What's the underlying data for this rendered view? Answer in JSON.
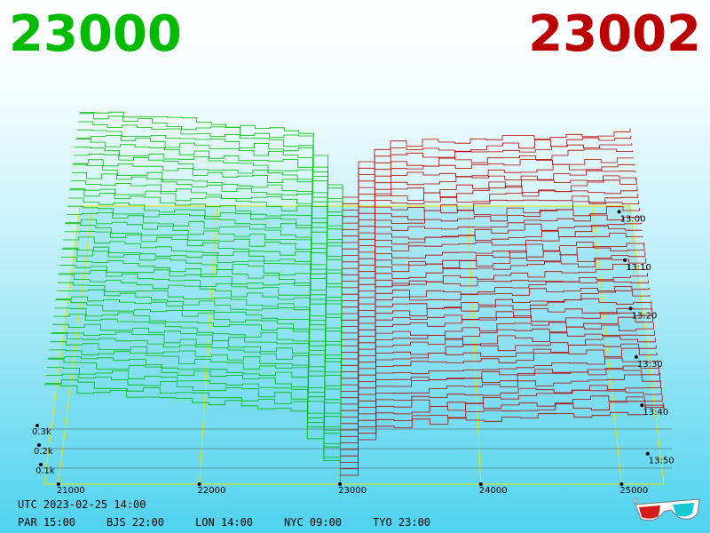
{
  "header": {
    "bid_price": "23000",
    "ask_price": "23002",
    "bid_color": "#00bb00",
    "ask_color": "#bb0000"
  },
  "footer": {
    "utc_line": "UTC 2023-02-25 14:00",
    "timezones": [
      {
        "label": "PAR 15:00"
      },
      {
        "label": "BJS 22:00"
      },
      {
        "label": "LON 14:00"
      },
      {
        "label": "NYC 09:00"
      },
      {
        "label": "TYO 23:00"
      }
    ],
    "icon": "3d-glasses-icon"
  },
  "chart_data": {
    "type": "area",
    "description_kind": "3d-order-book-depth-over-time",
    "x_axis_ticks": [
      "21000",
      "22000",
      "23000",
      "24000",
      "25000"
    ],
    "x_range": [
      20900,
      25300
    ],
    "mid_price": 23001,
    "z_axis_ticks": [
      "0.1k",
      "0.2k",
      "0.3k"
    ],
    "time_ticks": [
      "13:00",
      "13:10",
      "13:20",
      "13:30",
      "13:40",
      "13:50"
    ],
    "series": [
      {
        "name": "bids",
        "color": "#00bb00"
      },
      {
        "name": "asks",
        "color": "#bb0000"
      }
    ],
    "grid_color": "#e6e600"
  }
}
